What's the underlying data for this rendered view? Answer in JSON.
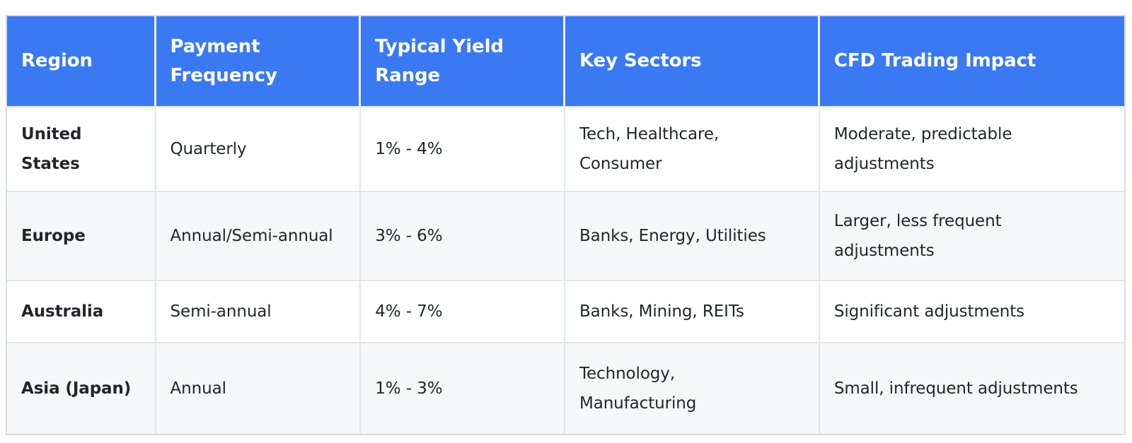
{
  "colors": {
    "header_bg": "#3a79f2",
    "header_text": "#ffffff",
    "header_divider": "#eef1f4",
    "row_bg": "#ffffff",
    "row_alt_bg": "#f6f7f9",
    "grid_border": "#e4e7ea",
    "outer_border": "#d8dcdf",
    "body_text": "#22262b"
  },
  "table": {
    "columns": [
      {
        "label": "Region"
      },
      {
        "label": "Payment\nFrequency"
      },
      {
        "label": "Typical Yield\nRange"
      },
      {
        "label": "Key Sectors"
      },
      {
        "label": "CFD Trading Impact"
      }
    ],
    "rows": [
      {
        "region": "United\nStates",
        "payment_frequency": "Quarterly",
        "yield_range": "1% - 4%",
        "key_sectors": "Tech, Healthcare,\nConsumer",
        "cfd_impact": "Moderate, predictable\nadjustments"
      },
      {
        "region": "Europe",
        "payment_frequency": "Annual/Semi-annual",
        "yield_range": "3% - 6%",
        "key_sectors": "Banks, Energy, Utilities",
        "cfd_impact": "Larger, less frequent\nadjustments"
      },
      {
        "region": "Australia",
        "payment_frequency": "Semi-annual",
        "yield_range": "4% - 7%",
        "key_sectors": "Banks, Mining, REITs",
        "cfd_impact": "Significant adjustments"
      },
      {
        "region": "Asia (Japan)",
        "payment_frequency": "Annual",
        "yield_range": "1% - 3%",
        "key_sectors": "Technology,\nManufacturing",
        "cfd_impact": "Small, infrequent adjustments"
      }
    ]
  }
}
